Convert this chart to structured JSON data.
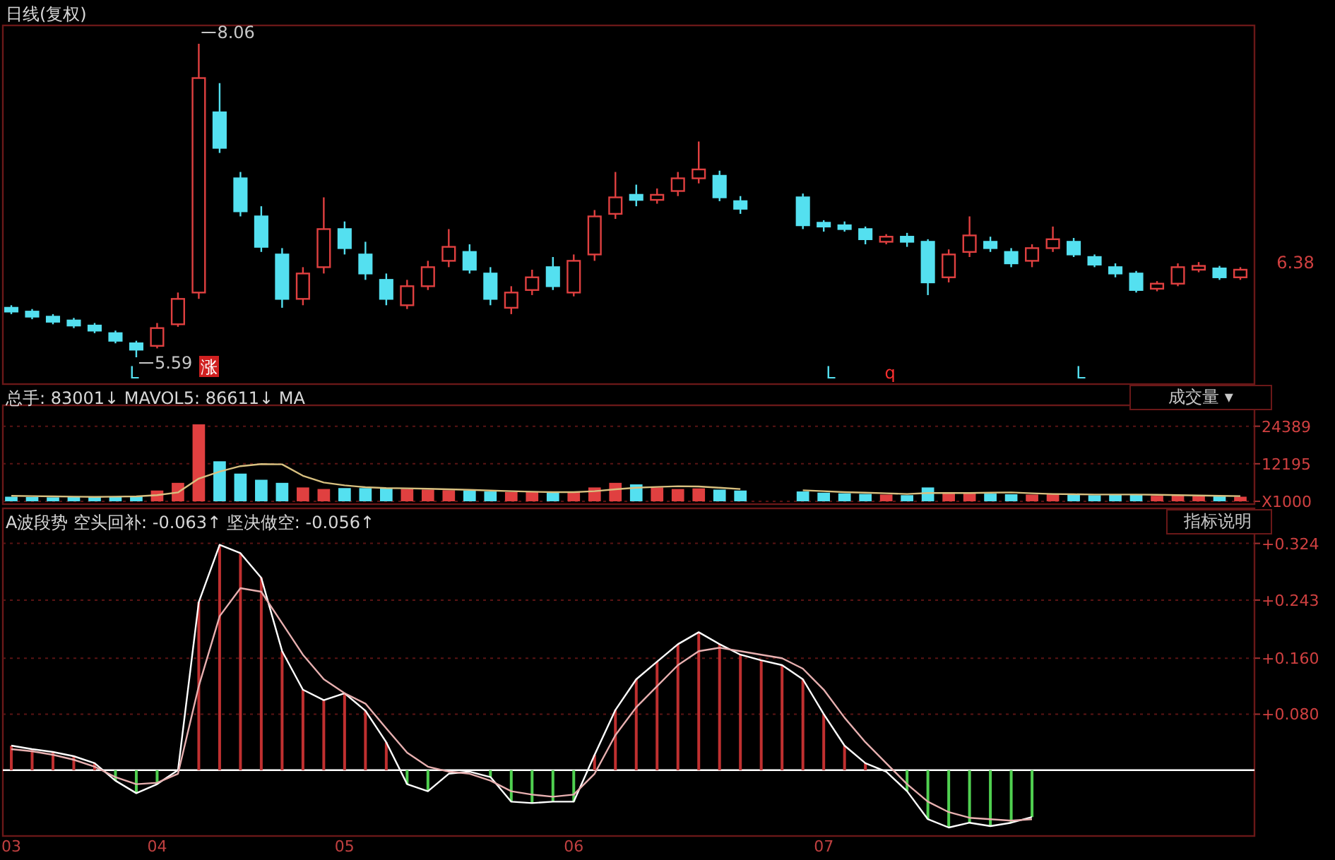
{
  "chart_data": [
    {
      "type": "candlestick",
      "title": "日线(复权)",
      "categories": [
        null,
        null,
        null,
        null,
        null,
        null,
        null,
        null,
        null,
        null,
        null,
        null,
        null,
        null,
        null,
        null,
        null,
        null,
        null,
        null,
        null,
        null,
        null,
        null,
        null,
        null,
        null,
        null,
        null,
        null,
        null,
        null,
        null,
        null,
        null,
        null,
        null,
        null,
        null,
        null,
        null,
        null,
        null,
        null,
        null,
        null,
        null,
        null,
        null,
        null,
        null,
        null,
        null,
        null,
        null,
        null,
        null,
        null,
        null,
        null
      ],
      "ohlc": [
        [
          5.98,
          6.0,
          5.93,
          5.95
        ],
        [
          5.95,
          5.97,
          5.89,
          5.91
        ],
        [
          5.91,
          5.93,
          5.85,
          5.87
        ],
        [
          5.88,
          5.9,
          5.82,
          5.84
        ],
        [
          5.84,
          5.86,
          5.78,
          5.8
        ],
        [
          5.78,
          5.8,
          5.7,
          5.72
        ],
        [
          5.7,
          5.72,
          5.59,
          5.65
        ],
        [
          5.68,
          5.86,
          5.66,
          5.82
        ],
        [
          5.85,
          6.1,
          5.83,
          6.05
        ],
        [
          6.1,
          8.06,
          6.05,
          7.79
        ],
        [
          7.52,
          7.75,
          7.2,
          7.24
        ],
        [
          7.0,
          7.05,
          6.7,
          6.74
        ],
        [
          6.7,
          6.78,
          6.42,
          6.46
        ],
        [
          6.4,
          6.45,
          5.98,
          6.05
        ],
        [
          6.05,
          6.3,
          6.0,
          6.25
        ],
        [
          6.3,
          6.85,
          6.25,
          6.6
        ],
        [
          6.6,
          6.66,
          6.4,
          6.45
        ],
        [
          6.4,
          6.5,
          6.2,
          6.25
        ],
        [
          6.2,
          6.25,
          6.0,
          6.05
        ],
        [
          6.0,
          6.2,
          5.97,
          6.15
        ],
        [
          6.15,
          6.35,
          6.12,
          6.3
        ],
        [
          6.35,
          6.6,
          6.3,
          6.46
        ],
        [
          6.42,
          6.48,
          6.25,
          6.28
        ],
        [
          6.25,
          6.3,
          6.0,
          6.05
        ],
        [
          5.98,
          6.15,
          5.93,
          6.1
        ],
        [
          6.12,
          6.28,
          6.08,
          6.22
        ],
        [
          6.3,
          6.38,
          6.12,
          6.15
        ],
        [
          6.1,
          6.4,
          6.07,
          6.35
        ],
        [
          6.4,
          6.75,
          6.35,
          6.7
        ],
        [
          6.72,
          7.05,
          6.68,
          6.85
        ],
        [
          6.87,
          6.95,
          6.78,
          6.83
        ],
        [
          6.83,
          6.92,
          6.8,
          6.87
        ],
        [
          6.9,
          7.05,
          6.86,
          7.0
        ],
        [
          7.0,
          7.29,
          6.96,
          7.07
        ],
        [
          7.02,
          7.06,
          6.82,
          6.85
        ],
        [
          6.82,
          6.86,
          6.72,
          6.76
        ],
        null,
        null,
        [
          6.85,
          6.88,
          6.6,
          6.63
        ],
        [
          6.65,
          6.67,
          6.58,
          6.62
        ],
        [
          6.63,
          6.66,
          6.58,
          6.6
        ],
        [
          6.6,
          6.62,
          6.48,
          6.52
        ],
        [
          6.5,
          6.56,
          6.48,
          6.54
        ],
        [
          6.54,
          6.57,
          6.46,
          6.5
        ],
        [
          6.5,
          6.52,
          6.08,
          6.18
        ],
        [
          6.22,
          6.44,
          6.18,
          6.4
        ],
        [
          6.42,
          6.7,
          6.38,
          6.55
        ],
        [
          6.5,
          6.54,
          6.42,
          6.45
        ],
        [
          6.42,
          6.45,
          6.3,
          6.33
        ],
        [
          6.35,
          6.48,
          6.3,
          6.45
        ],
        [
          6.45,
          6.62,
          6.42,
          6.52
        ],
        [
          6.5,
          6.53,
          6.38,
          6.4
        ],
        [
          6.38,
          6.4,
          6.3,
          6.32
        ],
        [
          6.3,
          6.33,
          6.22,
          6.25
        ],
        [
          6.25,
          6.27,
          6.1,
          6.12
        ],
        [
          6.13,
          6.19,
          6.11,
          6.17
        ],
        [
          6.17,
          6.33,
          6.15,
          6.3
        ],
        [
          6.28,
          6.34,
          6.26,
          6.31
        ],
        [
          6.29,
          6.31,
          6.2,
          6.22
        ],
        [
          6.22,
          6.3,
          6.2,
          6.28
        ]
      ],
      "tick_labels": false,
      "annotations": [
        "8.06",
        "5.59",
        "6.38",
        "涨",
        "L",
        "L",
        "q",
        "L"
      ]
    },
    {
      "type": "bar",
      "title": "总手: 83001↓  MAVOL5: 86611↓  MA",
      "categories": [
        null,
        null,
        null,
        null,
        null,
        null,
        null,
        null,
        null,
        null,
        null,
        null,
        null,
        null,
        null,
        null,
        null,
        null,
        null,
        null,
        null,
        null,
        null,
        null,
        null,
        null,
        null,
        null,
        null,
        null,
        null,
        null,
        null,
        null,
        null,
        null,
        null,
        null,
        null,
        null,
        null,
        null,
        null,
        null,
        null,
        null,
        null,
        null,
        null,
        null,
        null,
        null,
        null,
        null,
        null,
        null,
        null,
        null,
        null,
        null
      ],
      "series": [
        {
          "type": "bar",
          "values": [
            1500,
            1400,
            1300,
            1400,
            1500,
            1600,
            1800,
            3500,
            6000,
            25000,
            13000,
            9000,
            7000,
            6000,
            4500,
            4000,
            4300,
            4300,
            4200,
            4000,
            3800,
            3600,
            3500,
            3200,
            3000,
            3000,
            2800,
            3200,
            4500,
            6000,
            5500,
            4500,
            4000,
            4200,
            3800,
            3500,
            null,
            null,
            3200,
            2800,
            2600,
            2400,
            2200,
            2000,
            4500,
            3000,
            2800,
            2500,
            2300,
            2200,
            2400,
            2200,
            2000,
            2100,
            2300,
            1800,
            2000,
            1700,
            1600,
            1500
          ],
          "colors": [
            "#54e0f0",
            "#54e0f0",
            "#54e0f0",
            "#54e0f0",
            "#54e0f0",
            "#54e0f0",
            "#54e0f0",
            "#e04040",
            "#e04040",
            "#e04040",
            "#54e0f0",
            "#54e0f0",
            "#54e0f0",
            "#54e0f0",
            "#e04040",
            "#e04040",
            "#54e0f0",
            "#54e0f0",
            "#54e0f0",
            "#e04040",
            "#e04040",
            "#e04040",
            "#54e0f0",
            "#54e0f0",
            "#e04040",
            "#e04040",
            "#54e0f0",
            "#e04040",
            "#e04040",
            "#e04040",
            "#54e0f0",
            "#e04040",
            "#e04040",
            "#e04040",
            "#54e0f0",
            "#54e0f0",
            null,
            null,
            "#54e0f0",
            "#54e0f0",
            "#54e0f0",
            "#54e0f0",
            "#e04040",
            "#54e0f0",
            "#54e0f0",
            "#e04040",
            "#e04040",
            "#54e0f0",
            "#54e0f0",
            "#e04040",
            "#e04040",
            "#54e0f0",
            "#54e0f0",
            "#54e0f0",
            "#54e0f0",
            "#e04040",
            "#e04040",
            "#e04040",
            "#54e0f0",
            "#e04040"
          ]
        },
        {
          "type": "line",
          "color": "#d8c080",
          "values": [
            1800,
            1700,
            1600,
            1500,
            1400,
            1500,
            1600,
            2000,
            2900,
            7400,
            9700,
            11400,
            12100,
            12000,
            8300,
            6100,
            5200,
            4600,
            4300,
            4200,
            4100,
            3900,
            3700,
            3500,
            3300,
            3100,
            3000,
            3000,
            3300,
            3900,
            4400,
            4700,
            4900,
            4800,
            4400,
            4000,
            null,
            null,
            3600,
            3300,
            3000,
            2800,
            2600,
            2400,
            2700,
            2700,
            2700,
            2800,
            2900,
            2600,
            2400,
            2300,
            2200,
            2200,
            2200,
            2100,
            2000,
            1900,
            1800,
            1700
          ]
        }
      ],
      "ylim": [
        0,
        30270
      ],
      "yticks": [
        {
          "value": 0,
          "label": "X1000"
        },
        12195,
        24389
      ],
      "grid": "y",
      "tick_labels": "y",
      "annotations": [
        "成交量 ▾"
      ]
    },
    {
      "type": "bar",
      "title": "A波段势 空头回补: -0.063↑ 坚决做空: -0.056↑",
      "categories": [
        "03",
        null,
        null,
        null,
        null,
        null,
        null,
        "04",
        null,
        null,
        null,
        null,
        null,
        null,
        null,
        null,
        "05",
        null,
        null,
        null,
        null,
        null,
        null,
        null,
        null,
        null,
        null,
        "06",
        null,
        null,
        null,
        null,
        null,
        null,
        null,
        null,
        null,
        null,
        null,
        "07",
        null,
        null,
        null,
        null,
        null,
        null,
        null,
        null,
        null,
        null,
        null,
        null,
        null,
        null,
        null,
        null,
        null,
        null,
        null,
        null
      ],
      "series": [
        {
          "type": "bar",
          "values": [
            0.035,
            0.03,
            0.026,
            0.02,
            0.01,
            -0.015,
            -0.033,
            -0.02,
            0.0,
            0.24,
            0.322,
            0.31,
            0.275,
            0.17,
            0.115,
            0.1,
            0.11,
            0.085,
            0.04,
            -0.02,
            -0.03,
            null,
            null,
            -0.01,
            -0.045,
            -0.047,
            -0.045,
            -0.045,
            0.022,
            0.086,
            0.13,
            0.155,
            0.18,
            0.197,
            0.18,
            0.165,
            0.157,
            0.15,
            0.13,
            0.08,
            0.035,
            0.01,
            null,
            -0.03,
            -0.07,
            -0.082,
            -0.075,
            -0.08,
            -0.075,
            -0.067,
            null,
            null,
            null,
            null,
            null,
            null,
            null,
            null,
            null,
            null
          ],
          "colors": [
            "#c03030",
            "#c03030",
            "#c03030",
            "#c03030",
            "#c03030",
            "#50d050",
            "#50d050",
            "#50d050",
            "#c03030",
            "#c03030",
            "#c03030",
            "#c03030",
            "#c03030",
            "#c03030",
            "#c03030",
            "#c03030",
            "#c03030",
            "#c03030",
            "#c03030",
            "#50d050",
            "#50d050",
            null,
            null,
            "#50d050",
            "#50d050",
            "#50d050",
            "#50d050",
            "#50d050",
            "#c03030",
            "#c03030",
            "#c03030",
            "#c03030",
            "#c03030",
            "#c03030",
            "#c03030",
            "#c03030",
            "#c03030",
            "#c03030",
            "#c03030",
            "#c03030",
            "#c03030",
            "#c03030",
            null,
            "#50d050",
            "#50d050",
            "#50d050",
            "#50d050",
            "#50d050",
            "#50d050",
            "#50d050",
            null,
            null,
            null,
            null,
            null,
            null,
            null,
            null,
            null,
            null
          ]
        },
        {
          "type": "line",
          "color": "#ffffff",
          "values": [
            0.035,
            0.03,
            0.026,
            0.02,
            0.01,
            -0.015,
            -0.033,
            -0.02,
            0.0,
            0.24,
            0.322,
            0.31,
            0.275,
            0.17,
            0.115,
            0.1,
            0.11,
            0.085,
            0.04,
            -0.02,
            -0.03,
            -0.005,
            -0.002,
            -0.01,
            -0.045,
            -0.047,
            -0.045,
            -0.045,
            0.022,
            0.086,
            0.13,
            0.155,
            0.18,
            0.197,
            0.18,
            0.165,
            0.157,
            0.15,
            0.13,
            0.08,
            0.035,
            0.01,
            -0.002,
            -0.03,
            -0.07,
            -0.082,
            -0.075,
            -0.08,
            -0.075,
            -0.067,
            null,
            null,
            null,
            null,
            null,
            null,
            null,
            null,
            null,
            null
          ]
        },
        {
          "type": "line",
          "color": "#e8b0b0",
          "values": [
            0.03,
            0.027,
            0.022,
            0.015,
            0.005,
            -0.01,
            -0.02,
            -0.018,
            -0.005,
            0.12,
            0.22,
            0.26,
            0.255,
            0.21,
            0.165,
            0.13,
            0.11,
            0.095,
            0.06,
            0.025,
            0.005,
            -0.002,
            -0.005,
            -0.015,
            -0.03,
            -0.035,
            -0.038,
            -0.035,
            -0.005,
            0.05,
            0.09,
            0.12,
            0.15,
            0.17,
            0.175,
            0.17,
            0.165,
            0.16,
            0.145,
            0.115,
            0.075,
            0.04,
            0.01,
            -0.02,
            -0.045,
            -0.06,
            -0.068,
            -0.07,
            -0.072,
            -0.07,
            null,
            null,
            null,
            null,
            null,
            null,
            null,
            null,
            null,
            null
          ]
        }
      ],
      "ylim": [
        -0.09,
        0.37
      ],
      "yticks": [
        {
          "value": 0.08,
          "label": "+0.080"
        },
        {
          "value": 0.16,
          "label": "+0.160"
        },
        {
          "value": 0.243,
          "label": "+0.243"
        },
        {
          "value": 0.324,
          "label": "+0.324"
        }
      ],
      "grid": "y",
      "ref_lines": [
        {
          "axis": "y",
          "value": 0,
          "color": "#ffffff"
        }
      ],
      "annotations": [
        "指标说明"
      ]
    }
  ]
}
